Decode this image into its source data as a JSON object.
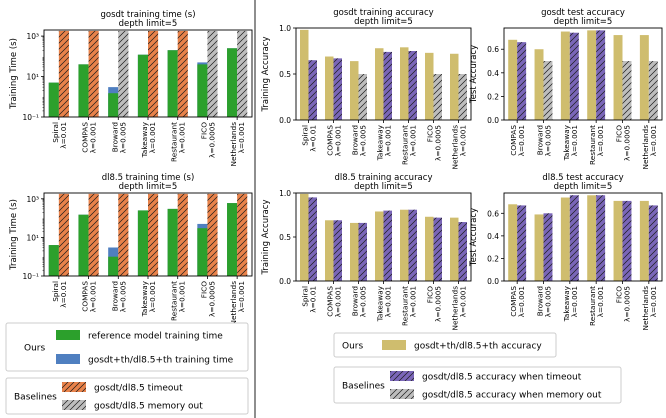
{
  "colors": {
    "green": "#2ca02c",
    "blue": "#4f7fc0",
    "orange": "#e8824a",
    "gray": "#bdbdbd",
    "khaki": "#cfbd6e",
    "purple": "#7a66b8",
    "lightgray": "#cccccc",
    "divider": "#444444"
  },
  "legends": {
    "time_ours": {
      "label": "Ours",
      "items": [
        {
          "text": "reference model training time",
          "style": "green"
        },
        {
          "text": "gosdt+th/dl8.5+th training time",
          "style": "blue"
        }
      ]
    },
    "time_baselines": {
      "label": "Baselines",
      "items": [
        {
          "text": "gosdt/dl8.5 timeout",
          "style": "orange_hatch"
        },
        {
          "text": "gosdt/dl8.5 memory out",
          "style": "gray_hatch"
        }
      ]
    },
    "acc_ours": {
      "label": "Ours",
      "items": [
        {
          "text": "gosdt+th/dl8.5+th accuracy",
          "style": "khaki"
        }
      ]
    },
    "acc_baselines": {
      "label": "Baselines",
      "items": [
        {
          "text": "gosdt/dl8.5 accuracy when timeout",
          "style": "purple_hatch"
        },
        {
          "text": "gosdt/dl8.5 accuracy when memory out",
          "style": "gray_hatch"
        }
      ]
    }
  },
  "chart_data": [
    {
      "id": "gosdt_time",
      "type": "bar",
      "scale": "log",
      "title": "gosdt training time (s)",
      "subtitle": "depth limit=5",
      "ylabel": "Training Time (s)",
      "ylim": [
        0.1,
        2000
      ],
      "yticks": [
        {
          "v": 0.1,
          "label": "10⁻¹"
        },
        {
          "v": 10,
          "label": "10¹"
        },
        {
          "v": 1000,
          "label": "10³"
        }
      ],
      "categories": [
        "Spiral\nλ=0.01",
        "COMPAS\nλ=0.001",
        "Broward\nλ=0.005",
        "Takeaway\nλ=0.001",
        "Restaurant\nλ=0.001",
        "FICO\nλ=0.0005",
        "Netherlands\nλ=0.001"
      ],
      "series": [
        {
          "name": "gosdt+th training time",
          "color": "blue",
          "hatch": false,
          "values": [
            5,
            40,
            3,
            120,
            200,
            50,
            250
          ],
          "overlay": {
            "name": "reference model training time",
            "color": "green",
            "values": [
              5,
              40,
              1.5,
              120,
              200,
              40,
              250
            ]
          }
        },
        {
          "name": "gosdt baseline",
          "values": [
            1800,
            1800,
            1800,
            1800,
            1800,
            1800,
            1800
          ],
          "styles": [
            "orange",
            "orange",
            "gray",
            "orange",
            "orange",
            "gray",
            "gray"
          ],
          "hatch": true
        }
      ]
    },
    {
      "id": "gosdt_train_acc",
      "type": "bar",
      "title": "gosdt training accuracy",
      "subtitle": "depth limit=5",
      "ylabel": "Training Accuracy",
      "ylim": [
        0,
        1.0
      ],
      "yticks": [
        {
          "v": 0,
          "label": "0.0"
        },
        {
          "v": 0.5,
          "label": "0.5"
        },
        {
          "v": 1.0,
          "label": "1.0"
        }
      ],
      "categories": [
        "Spiral\nλ=0.01",
        "COMPAS\nλ=0.001",
        "Broward\nλ=0.005",
        "Takeaway\nλ=0.001",
        "Restaurant\nλ=0.001",
        "FICO\nλ=0.0005",
        "Netherlands\nλ=0.001"
      ],
      "series": [
        {
          "name": "gosdt+th accuracy",
          "color": "khaki",
          "hatch": false,
          "values": [
            0.98,
            0.69,
            0.64,
            0.78,
            0.79,
            0.73,
            0.72
          ]
        },
        {
          "name": "gosdt baseline accuracy",
          "values": [
            0.65,
            0.67,
            0.5,
            0.74,
            0.75,
            0.5,
            0.5
          ],
          "styles": [
            "purple",
            "purple",
            "gray",
            "purple",
            "purple",
            "gray",
            "gray"
          ],
          "hatch": true
        }
      ]
    },
    {
      "id": "gosdt_test_acc",
      "type": "bar",
      "title": "gosdt test accuracy",
      "subtitle": "depth limit=5",
      "ylabel": "Test Accuracy",
      "ylim": [
        0,
        0.78
      ],
      "yticks": [
        {
          "v": 0,
          "label": "0.0"
        },
        {
          "v": 0.2,
          "label": "0.2"
        },
        {
          "v": 0.4,
          "label": "0.4"
        },
        {
          "v": 0.6,
          "label": "0.6"
        }
      ],
      "categories": [
        "COMPAS\nλ=0.001",
        "Broward\nλ=0.005",
        "Takeaway\nλ=0.001",
        "Restaurant\nλ=0.001",
        "FICO\nλ=0.0005",
        "Netherlands\nλ=0.001"
      ],
      "series": [
        {
          "name": "gosdt+th accuracy",
          "color": "khaki",
          "hatch": false,
          "values": [
            0.68,
            0.6,
            0.75,
            0.76,
            0.72,
            0.72
          ]
        },
        {
          "name": "gosdt baseline accuracy",
          "values": [
            0.66,
            0.5,
            0.74,
            0.76,
            0.5,
            0.5
          ],
          "styles": [
            "purple",
            "gray",
            "purple",
            "purple",
            "gray",
            "gray"
          ],
          "hatch": true
        }
      ]
    },
    {
      "id": "dl85_time",
      "type": "bar",
      "scale": "log",
      "title": "dl8.5 training time (s)",
      "subtitle": "depth limit=5",
      "ylabel": "Training Time (s)",
      "ylim": [
        0.1,
        2000
      ],
      "yticks": [
        {
          "v": 0.1,
          "label": "10⁻¹"
        },
        {
          "v": 10,
          "label": "10¹"
        },
        {
          "v": 1000,
          "label": "10³"
        }
      ],
      "categories": [
        "Spiral\nλ=0.01",
        "COMPAS\nλ=0.001",
        "Broward\nλ=0.005",
        "Takeaway\nλ=0.001",
        "Restaurant\nλ=0.001",
        "FICO\nλ=0.0005",
        "Netherlands\nλ=0.001"
      ],
      "series": [
        {
          "name": "dl8.5+th training time",
          "color": "blue",
          "hatch": false,
          "values": [
            4,
            150,
            3,
            250,
            300,
            50,
            600
          ],
          "overlay": {
            "name": "reference model training time",
            "color": "green",
            "values": [
              4,
              150,
              1,
              250,
              300,
              30,
              600
            ]
          }
        },
        {
          "name": "dl8.5 baseline",
          "values": [
            1800,
            1800,
            1800,
            1800,
            1800,
            1800,
            1800
          ],
          "styles": [
            "orange",
            "orange",
            "orange",
            "orange",
            "orange",
            "orange",
            "orange"
          ],
          "hatch": true
        }
      ]
    },
    {
      "id": "dl85_train_acc",
      "type": "bar",
      "title": "dl8.5 training accuracy",
      "subtitle": "depth limit=5",
      "ylabel": "Training Accuracy",
      "ylim": [
        0,
        1.0
      ],
      "yticks": [
        {
          "v": 0,
          "label": "0.0"
        },
        {
          "v": 0.5,
          "label": "0.5"
        },
        {
          "v": 1.0,
          "label": "1.0"
        }
      ],
      "categories": [
        "Spiral\nλ=0.01",
        "COMPAS\nλ=0.001",
        "Broward\nλ=0.005",
        "Takeaway\nλ=0.001",
        "Restaurant\nλ=0.001",
        "FICO\nλ=0.0005",
        "Netherlands\nλ=0.001"
      ],
      "series": [
        {
          "name": "dl8.5+th accuracy",
          "color": "khaki",
          "hatch": false,
          "values": [
            0.99,
            0.69,
            0.66,
            0.79,
            0.81,
            0.73,
            0.72
          ]
        },
        {
          "name": "dl8.5 baseline accuracy",
          "values": [
            0.95,
            0.69,
            0.66,
            0.8,
            0.81,
            0.72,
            0.67
          ],
          "styles": [
            "purple",
            "purple",
            "purple",
            "purple",
            "purple",
            "purple",
            "purple"
          ],
          "hatch": true
        }
      ]
    },
    {
      "id": "dl85_test_acc",
      "type": "bar",
      "title": "dl8.5 test accuracy",
      "subtitle": "depth limit=5",
      "ylabel": "Test Accuracy",
      "ylim": [
        0,
        0.78
      ],
      "yticks": [
        {
          "v": 0,
          "label": "0.0"
        },
        {
          "v": 0.2,
          "label": "0.2"
        },
        {
          "v": 0.4,
          "label": "0.4"
        },
        {
          "v": 0.6,
          "label": "0.6"
        }
      ],
      "categories": [
        "COMPAS\nλ=0.001",
        "Broward\nλ=0.005",
        "Takeaway\nλ=0.001",
        "Restaurant\nλ=0.001",
        "FICO\nλ=0.0005",
        "Netherlands\nλ=0.001"
      ],
      "series": [
        {
          "name": "dl8.5+th accuracy",
          "color": "khaki",
          "hatch": false,
          "values": [
            0.68,
            0.59,
            0.74,
            0.76,
            0.71,
            0.71
          ]
        },
        {
          "name": "dl8.5 baseline accuracy",
          "values": [
            0.67,
            0.6,
            0.76,
            0.76,
            0.71,
            0.67
          ],
          "styles": [
            "purple",
            "purple",
            "purple",
            "purple",
            "purple",
            "purple"
          ],
          "hatch": true
        }
      ]
    }
  ]
}
